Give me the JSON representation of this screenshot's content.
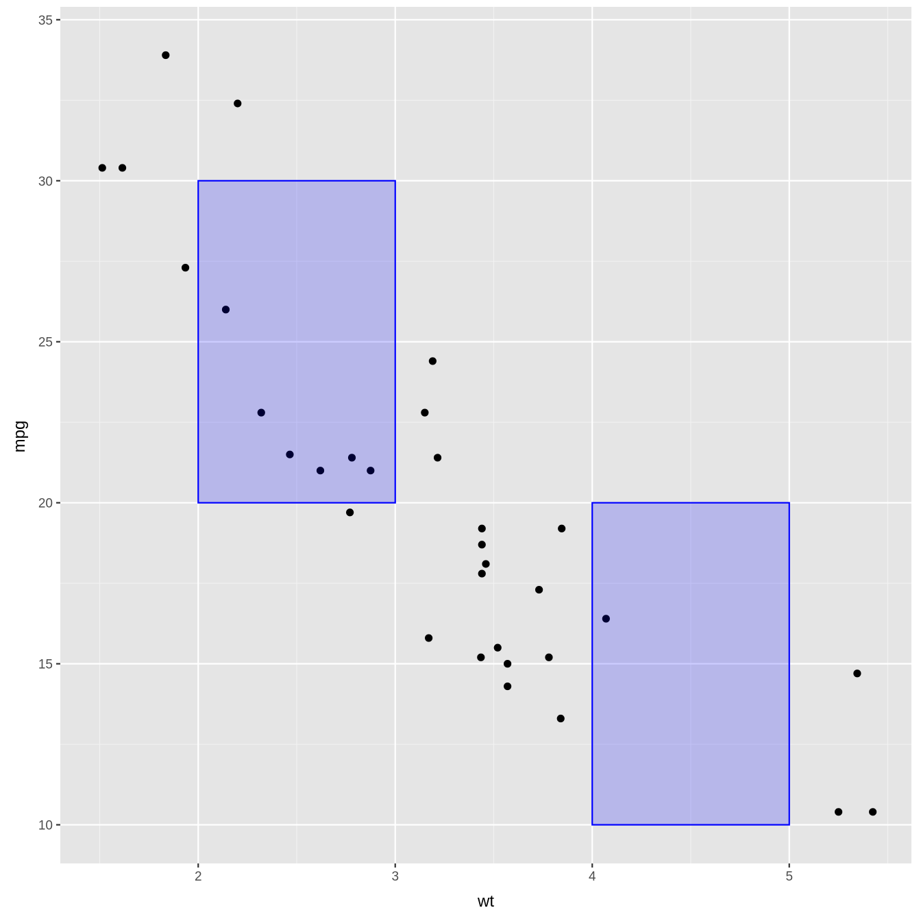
{
  "chart_data": {
    "type": "scatter",
    "title": "",
    "xlabel": "wt",
    "ylabel": "mpg",
    "xlim": [
      1.3,
      5.62
    ],
    "ylim": [
      8.8,
      35.4
    ],
    "x_ticks": [
      2,
      3,
      4,
      5
    ],
    "y_ticks": [
      10,
      15,
      20,
      25,
      30,
      35
    ],
    "x_tick_labels": [
      "2",
      "3",
      "4",
      "5"
    ],
    "y_tick_labels": [
      "10",
      "15",
      "20",
      "25",
      "30",
      "35"
    ],
    "grid": true,
    "legend": null,
    "points": [
      {
        "wt": 2.62,
        "mpg": 21.0
      },
      {
        "wt": 2.875,
        "mpg": 21.0
      },
      {
        "wt": 2.32,
        "mpg": 22.8
      },
      {
        "wt": 3.215,
        "mpg": 21.4
      },
      {
        "wt": 3.44,
        "mpg": 18.7
      },
      {
        "wt": 3.46,
        "mpg": 18.1
      },
      {
        "wt": 3.57,
        "mpg": 14.3
      },
      {
        "wt": 3.19,
        "mpg": 24.4
      },
      {
        "wt": 3.15,
        "mpg": 22.8
      },
      {
        "wt": 3.44,
        "mpg": 19.2
      },
      {
        "wt": 3.44,
        "mpg": 17.8
      },
      {
        "wt": 4.07,
        "mpg": 16.4
      },
      {
        "wt": 3.73,
        "mpg": 17.3
      },
      {
        "wt": 3.78,
        "mpg": 15.2
      },
      {
        "wt": 5.25,
        "mpg": 10.4
      },
      {
        "wt": 5.424,
        "mpg": 10.4
      },
      {
        "wt": 5.345,
        "mpg": 14.7
      },
      {
        "wt": 2.2,
        "mpg": 32.4
      },
      {
        "wt": 1.615,
        "mpg": 30.4
      },
      {
        "wt": 1.835,
        "mpg": 33.9
      },
      {
        "wt": 2.465,
        "mpg": 21.5
      },
      {
        "wt": 3.52,
        "mpg": 15.5
      },
      {
        "wt": 3.435,
        "mpg": 15.2
      },
      {
        "wt": 3.84,
        "mpg": 13.3
      },
      {
        "wt": 3.845,
        "mpg": 19.2
      },
      {
        "wt": 1.935,
        "mpg": 27.3
      },
      {
        "wt": 2.14,
        "mpg": 26.0
      },
      {
        "wt": 1.513,
        "mpg": 30.4
      },
      {
        "wt": 3.17,
        "mpg": 15.8
      },
      {
        "wt": 2.77,
        "mpg": 19.7
      },
      {
        "wt": 3.57,
        "mpg": 15.0
      },
      {
        "wt": 2.78,
        "mpg": 21.4
      }
    ],
    "annotations": [
      {
        "type": "rect",
        "xmin": 2,
        "xmax": 3,
        "ymin": 20,
        "ymax": 30,
        "fill": "#0000ff",
        "alpha": 0.2,
        "color": "#0000ff"
      },
      {
        "type": "rect",
        "xmin": 4,
        "xmax": 5,
        "ymin": 10,
        "ymax": 20,
        "fill": "#0000ff",
        "alpha": 0.2,
        "color": "#0000ff"
      }
    ]
  },
  "colors": {
    "panel_background": "#e5e5e5",
    "grid_major": "#ffffff",
    "grid_minor": "#f2f2f2",
    "point": "#000000",
    "rect_fill": "#0000ff",
    "rect_border": "#0000ff",
    "tick_text": "#4d4d4d",
    "tick_mark": "#333333"
  }
}
